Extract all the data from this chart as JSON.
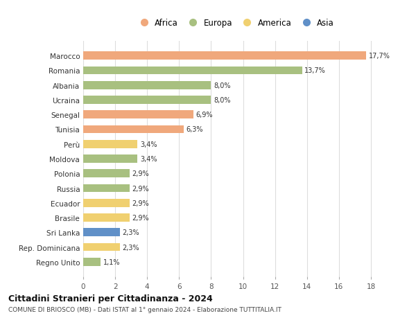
{
  "countries": [
    "Marocco",
    "Romania",
    "Albania",
    "Ucraina",
    "Senegal",
    "Tunisia",
    "Perù",
    "Moldova",
    "Polonia",
    "Russia",
    "Ecuador",
    "Brasile",
    "Sri Lanka",
    "Rep. Dominicana",
    "Regno Unito"
  ],
  "values": [
    17.7,
    13.7,
    8.0,
    8.0,
    6.9,
    6.3,
    3.4,
    3.4,
    2.9,
    2.9,
    2.9,
    2.9,
    2.3,
    2.3,
    1.1
  ],
  "labels": [
    "17,7%",
    "13,7%",
    "8,0%",
    "8,0%",
    "6,9%",
    "6,3%",
    "3,4%",
    "3,4%",
    "2,9%",
    "2,9%",
    "2,9%",
    "2,9%",
    "2,3%",
    "2,3%",
    "1,1%"
  ],
  "continents": [
    "Africa",
    "Europa",
    "Europa",
    "Europa",
    "Africa",
    "Africa",
    "America",
    "Europa",
    "Europa",
    "Europa",
    "America",
    "America",
    "Asia",
    "America",
    "Europa"
  ],
  "colors": {
    "Africa": "#F0A87C",
    "Europa": "#A8C080",
    "America": "#F0D070",
    "Asia": "#6090C8"
  },
  "legend_order": [
    "Africa",
    "Europa",
    "America",
    "Asia"
  ],
  "title": "Cittadini Stranieri per Cittadinanza - 2024",
  "subtitle": "COMUNE DI BRIOSCO (MB) - Dati ISTAT al 1° gennaio 2024 - Elaborazione TUTTITALIA.IT",
  "xlim": [
    0,
    19
  ],
  "xticks": [
    0,
    2,
    4,
    6,
    8,
    10,
    12,
    14,
    16,
    18
  ],
  "background_color": "#ffffff",
  "grid_color": "#dddddd"
}
